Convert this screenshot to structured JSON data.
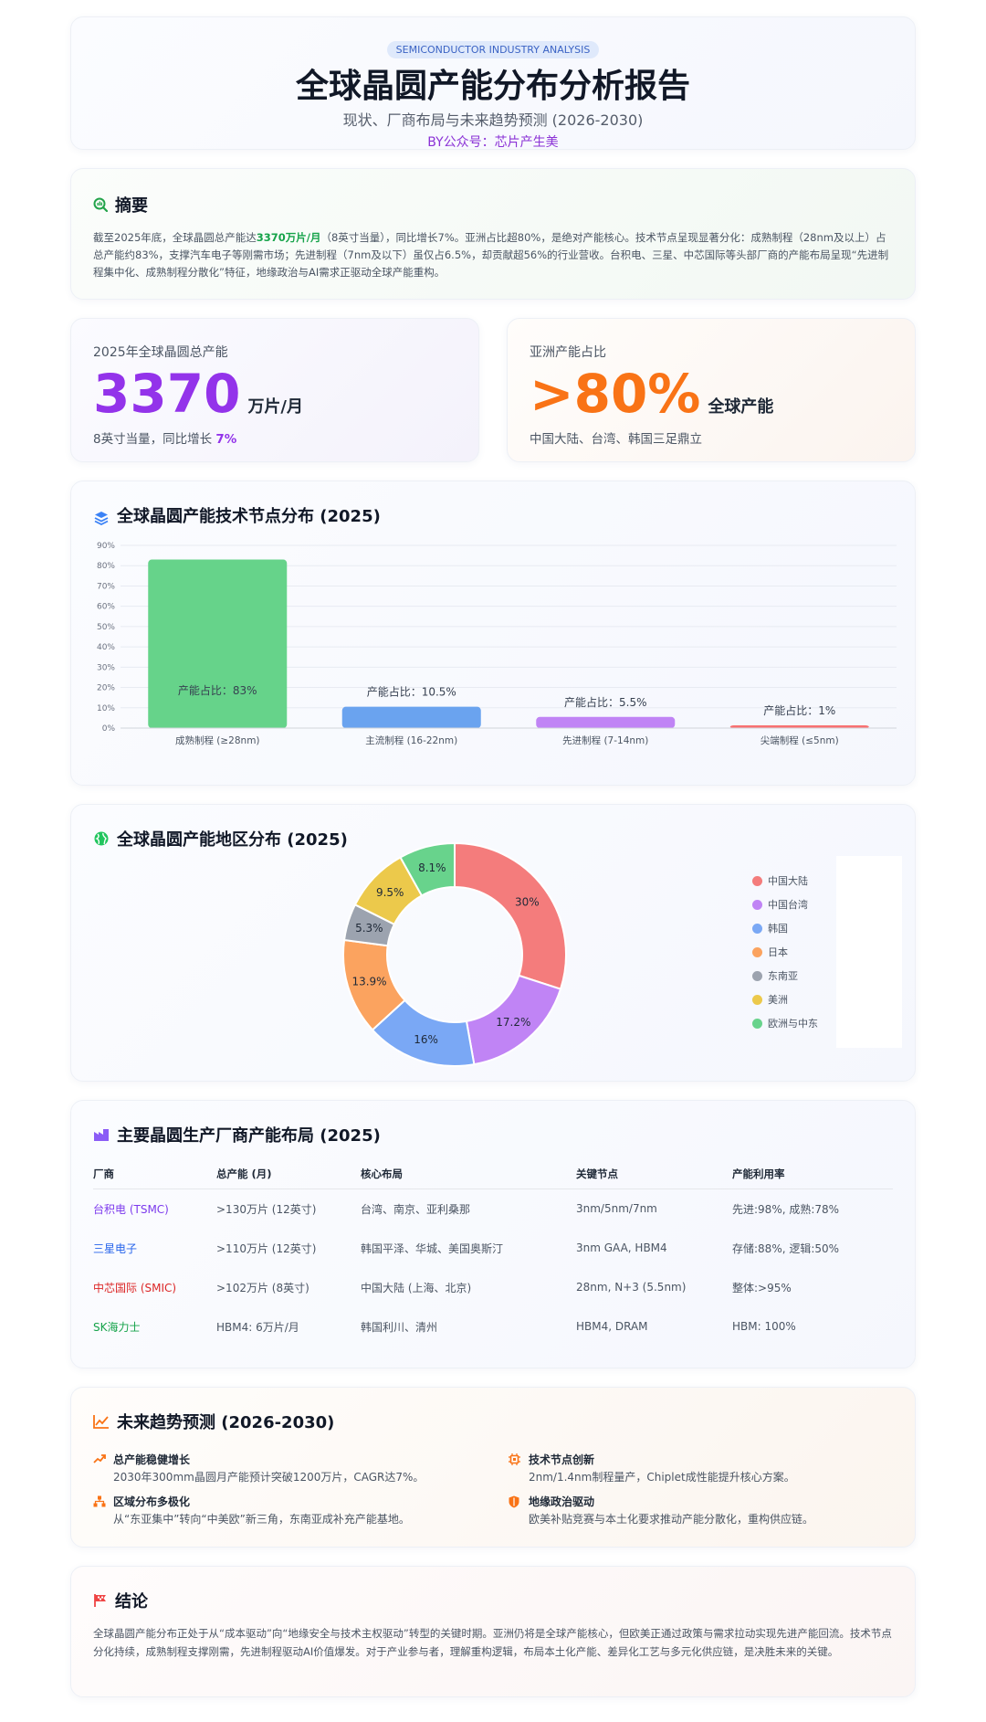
{
  "header": {
    "tag": "SEMICONDUCTOR INDUSTRY ANALYSIS",
    "title": "全球晶圆产能分布分析报告",
    "subtitle": "现状、厂商布局与未来趋势预测 (2026-2030)",
    "byline": "BY公众号：芯片产生美"
  },
  "summary": {
    "title": "摘要",
    "text_before": "截至2025年底，全球晶圆总产能达",
    "highlight": "3370万片/月",
    "text_after": "（8英寸当量），同比增长7%。亚洲占比超80%，是绝对产能核心。技术节点呈现显著分化：成熟制程（28nm及以上）占总产能约83%，支撑汽车电子等刚需市场；先进制程（7nm及以下）虽仅占6.5%，却贡献超56%的行业营收。台积电、三星、中芯国际等头部厂商的产能布局呈现“先进制程集中化、成熟制程分散化”特征，地缘政治与AI需求正驱动全球产能重构。"
  },
  "stats": {
    "capacity": {
      "label": "2025年全球晶圆总产能",
      "value": "3370",
      "unit": "万片/月",
      "note": "8英寸当量，同比增长",
      "growth": "7%",
      "color": "#9333ea"
    },
    "asia": {
      "label": "亚洲产能占比",
      "value": ">80%",
      "unit": "全球产能",
      "note": "中国大陆、台湾、韩国三足鼎立",
      "color": "#f97316"
    }
  },
  "bar_section": {
    "title": "全球晶圆产能技术节点分布 (2025)"
  },
  "pie_section": {
    "title": "全球晶圆产能地区分布 (2025)"
  },
  "chart_data": [
    {
      "type": "bar",
      "categories": [
        "成熟制程 (≥28nm)",
        "主流制程 (16-22nm)",
        "先进制程 (7-14nm)",
        "尖端制程 (≤5nm)"
      ],
      "values": [
        83,
        10.5,
        5.5,
        1
      ],
      "data_labels": [
        "产能占比：83%",
        "产能占比：10.5%",
        "产能占比：5.5%",
        "产能占比：1%"
      ],
      "colors": [
        "#66d38a",
        "#6aa3ef",
        "#c084f5",
        "#f87171"
      ],
      "ylim": [
        0,
        90
      ],
      "yticks": [
        "0%",
        "10%",
        "20%",
        "30%",
        "40%",
        "50%",
        "60%",
        "70%",
        "80%",
        "90%"
      ],
      "grid": true
    },
    {
      "type": "pie",
      "labels": [
        "中国大陆",
        "中国台湾",
        "韩国",
        "日本",
        "东南亚",
        "美洲",
        "欧洲与中东"
      ],
      "values": [
        30,
        17.2,
        16,
        13.9,
        5.3,
        9.5,
        8.1
      ],
      "data_labels": [
        "30%",
        "17.2%",
        "16%",
        "13.9%",
        "5.3%",
        "9.5%",
        "8.1%"
      ],
      "colors": [
        "#f47c7c",
        "#c084f5",
        "#7aa8f5",
        "#fba35f",
        "#9ca3af",
        "#ecc94b",
        "#68d38c"
      ],
      "legend_position": "right"
    }
  ],
  "table": {
    "title": "主要晶圆生产厂商产能布局 (2025)",
    "headers": [
      "厂商",
      "总产能 (月)",
      "核心布局",
      "关键节点",
      "产能利用率"
    ],
    "rows": [
      [
        "台积电 (TSMC)",
        ">130万片 (12英寸)",
        "台湾、南京、亚利桑那",
        "3nm/5nm/7nm",
        "先进:98%, 成熟:78%"
      ],
      [
        "三星电子",
        ">110万片 (12英寸)",
        "韩国平泽、华城、美国奥斯汀",
        "3nm GAA, HBM4",
        "存储:88%, 逻辑:50%"
      ],
      [
        "中芯国际 (SMIC)",
        ">102万片 (8英寸)",
        "中国大陆 (上海、北京)",
        "28nm, N+3 (5.5nm)",
        "整体:>95%"
      ],
      [
        "SK海力士",
        "HBM4: 6万片/月",
        "韩国利川、清州",
        "HBM4, DRAM",
        "HBM: 100%"
      ]
    ]
  },
  "trends": {
    "title": "未来趋势预测 (2026-2030)",
    "items": [
      {
        "title": "总产能稳健增长",
        "desc": "2030年300mm晶圆月产能预计突破1200万片，CAGR达7%。",
        "icon": "trend-up-icon"
      },
      {
        "title": "技术节点创新",
        "desc": "2nm/1.4nm制程量产，Chiplet成性能提升核心方案。",
        "icon": "chip-icon"
      },
      {
        "title": "区域分布多极化",
        "desc": "从“东亚集中”转向“中美欧”新三角，东南亚成补充产能基地。",
        "icon": "network-icon"
      },
      {
        "title": "地缘政治驱动",
        "desc": "欧美补贴竞赛与本土化要求推动产能分散化，重构供应链。",
        "icon": "shield-icon"
      }
    ]
  },
  "conclusion": {
    "title": "结论",
    "text": "全球晶圆产能分布正处于从“成本驱动”向“地缘安全与技术主权驱动”转型的关键时期。亚洲仍将是全球产能核心，但欧美正通过政策与需求拉动实现先进产能回流。技术节点分化持续，成熟制程支撑刚需，先进制程驱动AI价值爆发。对于产业参与者，理解重构逻辑，布局本土化产能、差异化工艺与多元化供应链，是决胜未来的关键。"
  }
}
